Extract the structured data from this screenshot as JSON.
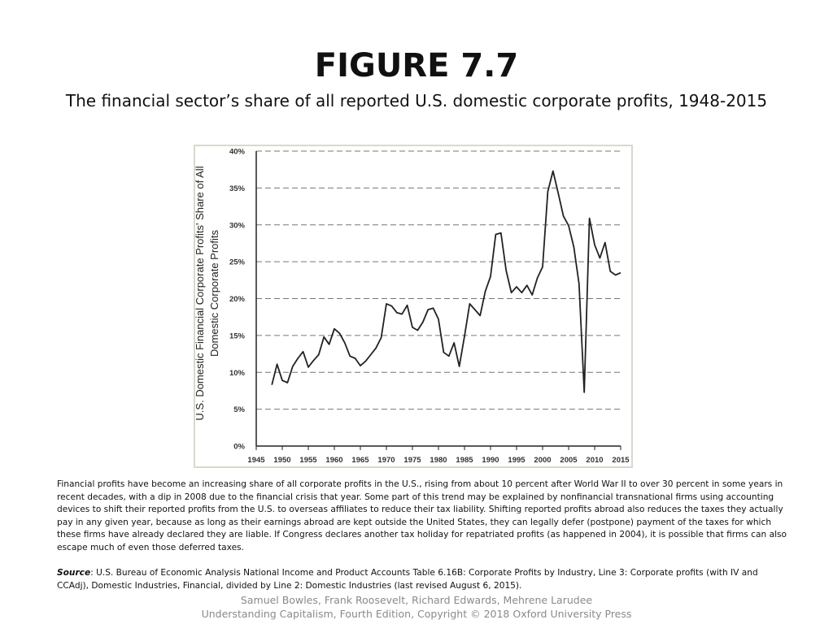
{
  "figure": {
    "title": "FIGURE 7.7",
    "subtitle": "The financial sector’s share of all reported U.S. domestic corporate profits, 1948-2015"
  },
  "description": "Financial profits have become an increasing share of all corporate profits in the U.S., rising from about 10 percent after World War II to over 30 percent in some years in recent decades, with a dip in 2008 due to the financial crisis that year. Some part of this trend may be explained by nonfinancial transnational firms using accounting devices to shift their reported profits from the U.S. to overseas affiliates to reduce their tax liability. Shifting reported profits abroad also reduces the taxes they actually pay in any given year, because as long as their earnings abroad are kept outside the United States, they can legally defer (postpone) payment of the taxes for which these firms have already declared they are liable. If Congress declares another tax holiday for repatriated profits (as happened in 2004), it is possible that firms can also escape much of even those deferred taxes.",
  "source": {
    "label": "Source",
    "text": ": U.S. Bureau of Economic Analysis National Income and Product Accounts Table 6.16B: Corporate Profits by Industry, Line 3: Corporate profits (with IV and CCAdj), Domestic Industries, Financial, divided by Line 2: Domestic Industries (last revised August 6, 2015)."
  },
  "footer": {
    "authors": "Samuel Bowles, Frank Roosevelt, Richard Edwards, Mehrene Larudee",
    "book": "Understanding Capitalism, Fourth Edition, Copyright © 2018 Oxford University Press"
  },
  "chart_data": {
    "type": "line",
    "title": "",
    "xlabel": "",
    "ylabel": "U.S. Domestic Financial Corporate Profits' Share of All Domestic Corporate Profits",
    "xlim": [
      1945,
      2015
    ],
    "ylim": [
      0,
      40
    ],
    "xticks": [
      1945,
      1950,
      1955,
      1960,
      1965,
      1970,
      1975,
      1980,
      1985,
      1990,
      1995,
      2000,
      2005,
      2010,
      2015
    ],
    "xtick_labels": [
      "1945",
      "1950",
      "1955",
      "1960",
      "1965",
      "1970",
      "1975",
      "1980",
      "1985",
      "1990",
      "1995",
      "2000",
      "2005",
      "2010",
      "2015"
    ],
    "yticks": [
      0,
      5,
      10,
      15,
      20,
      25,
      30,
      35,
      40
    ],
    "ytick_labels": [
      "0%",
      "5%",
      "10%",
      "15%",
      "20%",
      "25%",
      "30%",
      "35%",
      "40%"
    ],
    "grid": "horizontal dashed",
    "line_color": "#222222",
    "x": [
      1948,
      1949,
      1950,
      1951,
      1952,
      1953,
      1954,
      1955,
      1956,
      1957,
      1958,
      1959,
      1960,
      1961,
      1962,
      1963,
      1964,
      1965,
      1966,
      1967,
      1968,
      1969,
      1970,
      1971,
      1972,
      1973,
      1974,
      1975,
      1976,
      1977,
      1978,
      1979,
      1980,
      1981,
      1982,
      1983,
      1984,
      1985,
      1986,
      1987,
      1988,
      1989,
      1990,
      1991,
      1992,
      1993,
      1994,
      1995,
      1996,
      1997,
      1998,
      1999,
      2000,
      2001,
      2002,
      2003,
      2004,
      2005,
      2006,
      2007,
      2008,
      2009,
      2010,
      2011,
      2012,
      2013,
      2014,
      2015
    ],
    "values": [
      8.3,
      11.1,
      8.9,
      8.6,
      10.8,
      11.9,
      12.8,
      10.7,
      11.6,
      12.4,
      14.8,
      13.8,
      15.9,
      15.3,
      14.0,
      12.2,
      11.9,
      10.9,
      11.5,
      12.4,
      13.3,
      14.7,
      19.3,
      19.0,
      18.1,
      17.9,
      19.1,
      16.1,
      15.7,
      16.8,
      18.5,
      18.7,
      17.2,
      12.7,
      12.2,
      14.0,
      10.8,
      14.9,
      19.3,
      18.5,
      17.7,
      21.0,
      23.0,
      28.7,
      28.9,
      23.8,
      20.8,
      21.6,
      20.8,
      21.8,
      20.5,
      22.8,
      24.3,
      34.5,
      37.3,
      34.3,
      31.2,
      29.9,
      27.0,
      22.0,
      7.3,
      30.9,
      27.3,
      25.5,
      27.6,
      23.7,
      23.2,
      23.5
    ]
  }
}
